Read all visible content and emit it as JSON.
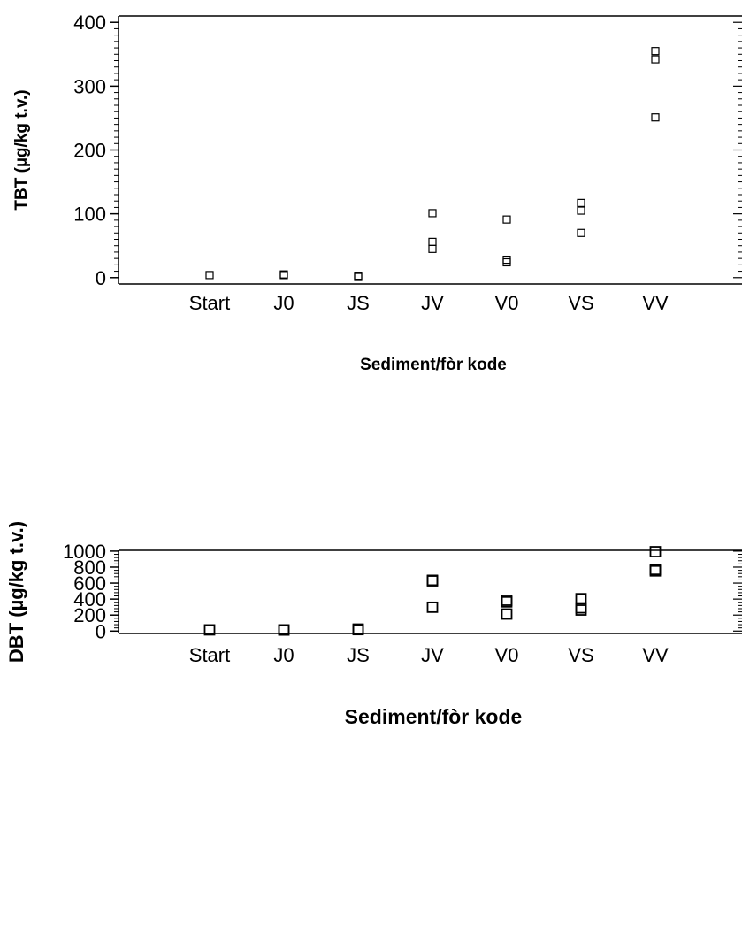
{
  "chart_data": [
    {
      "type": "scatter",
      "title": "",
      "xlabel": "Sediment/fòr kode",
      "ylabel": "TBT (µg/kg t.v.)",
      "categories": [
        "Start",
        "J0",
        "JS",
        "JV",
        "V0",
        "VS",
        "VV"
      ],
      "ylim": [
        -10,
        410
      ],
      "yticks": [
        0,
        100,
        200,
        300,
        400
      ],
      "grid": false,
      "points": [
        {
          "x": "Start",
          "y": 4
        },
        {
          "x": "J0",
          "y": 5
        },
        {
          "x": "J0",
          "y": 4
        },
        {
          "x": "JS",
          "y": 3
        },
        {
          "x": "JS",
          "y": 1
        },
        {
          "x": "JV",
          "y": 101
        },
        {
          "x": "JV",
          "y": 56
        },
        {
          "x": "JV",
          "y": 45
        },
        {
          "x": "V0",
          "y": 91
        },
        {
          "x": "V0",
          "y": 28
        },
        {
          "x": "V0",
          "y": 24
        },
        {
          "x": "VS",
          "y": 117
        },
        {
          "x": "VS",
          "y": 105
        },
        {
          "x": "VS",
          "y": 70
        },
        {
          "x": "VV",
          "y": 355
        },
        {
          "x": "VV",
          "y": 342
        },
        {
          "x": "VV",
          "y": 251
        }
      ]
    },
    {
      "type": "scatter",
      "title": "",
      "xlabel": "Sediment/fòr kode",
      "ylabel": "DBT (µg/kg t.v.)",
      "categories": [
        "Start",
        "J0",
        "JS",
        "JV",
        "V0",
        "VS",
        "VV"
      ],
      "ylim": [
        -30,
        1010
      ],
      "yticks": [
        0,
        200,
        400,
        600,
        800,
        1000
      ],
      "grid": false,
      "points": [
        {
          "x": "Start",
          "y": 15
        },
        {
          "x": "J0",
          "y": 15
        },
        {
          "x": "J0",
          "y": 13
        },
        {
          "x": "JS",
          "y": 25
        },
        {
          "x": "JS",
          "y": 18
        },
        {
          "x": "JV",
          "y": 635
        },
        {
          "x": "JV",
          "y": 628
        },
        {
          "x": "JV",
          "y": 298
        },
        {
          "x": "V0",
          "y": 385
        },
        {
          "x": "V0",
          "y": 365
        },
        {
          "x": "V0",
          "y": 213
        },
        {
          "x": "VS",
          "y": 405
        },
        {
          "x": "VS",
          "y": 290
        },
        {
          "x": "VS",
          "y": 263
        },
        {
          "x": "VV",
          "y": 993
        },
        {
          "x": "VV",
          "y": 770
        },
        {
          "x": "VV",
          "y": 753
        }
      ]
    }
  ]
}
